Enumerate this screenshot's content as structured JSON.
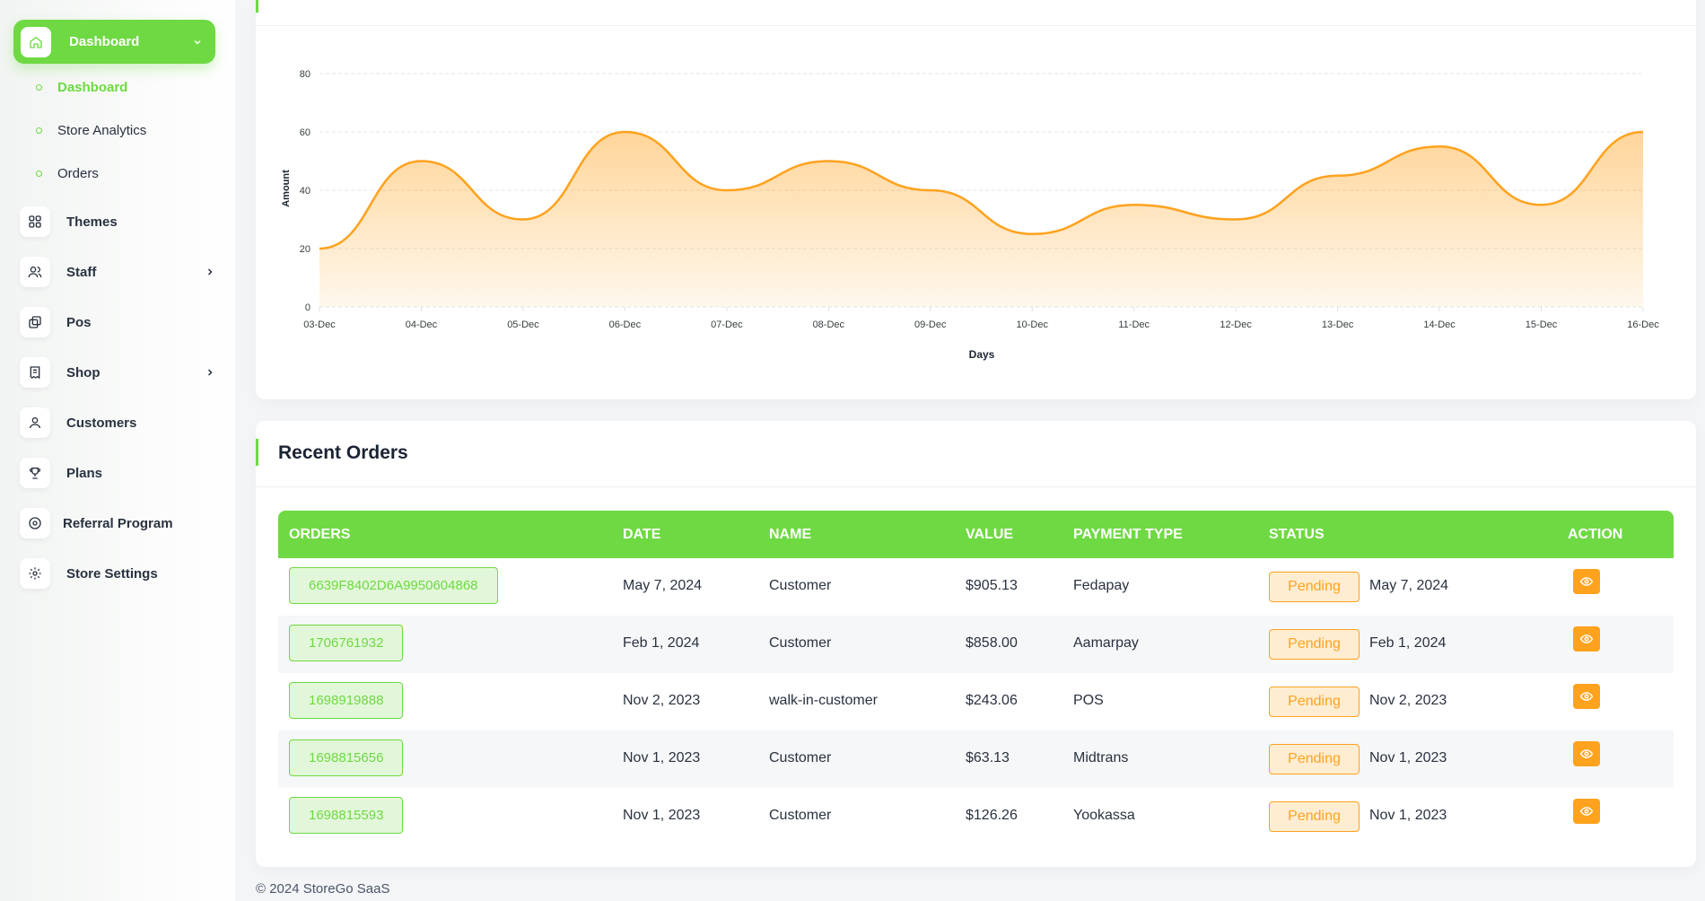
{
  "sidebar": {
    "dashboard_label": "Dashboard",
    "sub_items": [
      {
        "label": "Dashboard"
      },
      {
        "label": "Store Analytics"
      },
      {
        "label": "Orders"
      }
    ],
    "items": [
      {
        "label": "Themes",
        "icon": "grid-icon"
      },
      {
        "label": "Staff",
        "icon": "users-icon"
      },
      {
        "label": "Pos",
        "icon": "copy-icon"
      },
      {
        "label": "Shop",
        "icon": "receipt-icon"
      },
      {
        "label": "Customers",
        "icon": "user-icon"
      },
      {
        "label": "Plans",
        "icon": "trophy-icon"
      },
      {
        "label": "Referral Program",
        "icon": "badge-icon"
      },
      {
        "label": "Store Settings",
        "icon": "gear-icon"
      }
    ]
  },
  "chart_data": {
    "type": "area",
    "categories": [
      "03-Dec",
      "04-Dec",
      "05-Dec",
      "06-Dec",
      "07-Dec",
      "08-Dec",
      "09-Dec",
      "10-Dec",
      "11-Dec",
      "12-Dec",
      "13-Dec",
      "14-Dec",
      "15-Dec",
      "16-Dec"
    ],
    "series": [
      {
        "values": [
          20,
          50,
          30,
          60,
          40,
          50,
          40,
          25,
          35,
          30,
          45,
          55,
          35,
          60
        ]
      }
    ],
    "xlabel": "Days",
    "ylabel": "Amount",
    "yticks": [
      "0",
      "20",
      "40",
      "60",
      "80"
    ],
    "ylim": [
      0,
      80
    ],
    "grid": true,
    "color": "#ffa21d"
  },
  "orders": {
    "title": "Recent Orders",
    "columns": [
      "ORDERS",
      "DATE",
      "NAME",
      "VALUE",
      "PAYMENT TYPE",
      "STATUS",
      "ACTION"
    ],
    "rows": [
      {
        "id": "6639F8402D6A9950604868",
        "date": "May 7, 2024",
        "name": "Customer",
        "value": "$905.13",
        "payment": "Fedapay",
        "status": "Pending",
        "status_date": "May 7, 2024"
      },
      {
        "id": "1706761932",
        "date": "Feb 1, 2024",
        "name": "Customer",
        "value": "$858.00",
        "payment": "Aamarpay",
        "status": "Pending",
        "status_date": "Feb 1, 2024"
      },
      {
        "id": "1698919888",
        "date": "Nov 2, 2023",
        "name": "walk-in-customer",
        "value": "$243.06",
        "payment": "POS",
        "status": "Pending",
        "status_date": "Nov 2, 2023"
      },
      {
        "id": "1698815656",
        "date": "Nov 1, 2023",
        "name": "Customer",
        "value": "$63.13",
        "payment": "Midtrans",
        "status": "Pending",
        "status_date": "Nov 1, 2023"
      },
      {
        "id": "1698815593",
        "date": "Nov 1, 2023",
        "name": "Customer",
        "value": "$126.26",
        "payment": "Yookassa",
        "status": "Pending",
        "status_date": "Nov 1, 2023"
      }
    ]
  },
  "footer": {
    "text": "© 2024 StoreGo SaaS"
  },
  "colors": {
    "accent": "#6fd943",
    "warning": "#ffa21d"
  }
}
